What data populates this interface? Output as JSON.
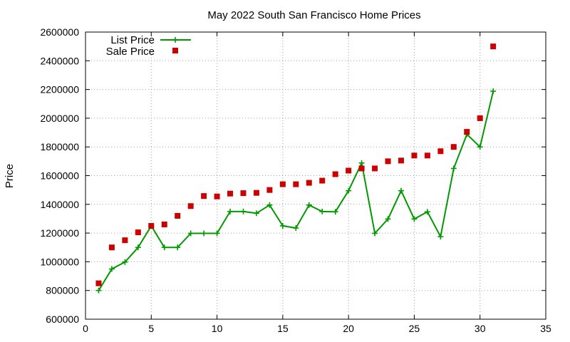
{
  "chart_data": {
    "type": "line",
    "title": "May 2022 South San Francisco Home Prices",
    "xlabel": "",
    "ylabel": "Price",
    "xlim": [
      0,
      35
    ],
    "ylim": [
      600000,
      2600000
    ],
    "xticks": [
      0,
      5,
      10,
      15,
      20,
      25,
      30,
      35
    ],
    "yticks": [
      600000,
      800000,
      1000000,
      1200000,
      1400000,
      1600000,
      1800000,
      2000000,
      2200000,
      2400000,
      2600000
    ],
    "grid": true,
    "legend_position": "top-left",
    "series": [
      {
        "name": "List Price",
        "style": "line-cross",
        "color": "#009900",
        "x": [
          1,
          2,
          3,
          4,
          5,
          6,
          7,
          8,
          9,
          10,
          11,
          12,
          13,
          14,
          15,
          16,
          17,
          18,
          19,
          20,
          21,
          22,
          23,
          24,
          25,
          26,
          27,
          28,
          29,
          30,
          31
        ],
        "values": [
          800000,
          950000,
          998000,
          1100000,
          1250000,
          1100000,
          1100000,
          1198000,
          1198000,
          1198000,
          1350000,
          1350000,
          1338000,
          1395000,
          1250000,
          1235000,
          1395000,
          1350000,
          1348000,
          1495000,
          1688000,
          1198000,
          1298000,
          1495000,
          1298000,
          1348000,
          1175000,
          1650000,
          1888000,
          1800000,
          2188000
        ]
      },
      {
        "name": "Sale Price",
        "style": "square",
        "color": "#cc0000",
        "x": [
          1,
          2,
          3,
          4,
          5,
          6,
          7,
          8,
          9,
          10,
          11,
          12,
          13,
          14,
          15,
          16,
          17,
          18,
          19,
          20,
          21,
          22,
          23,
          24,
          25,
          26,
          27,
          28,
          29,
          30,
          31
        ],
        "values": [
          850000,
          1100000,
          1150000,
          1205000,
          1250000,
          1260000,
          1320000,
          1388000,
          1458000,
          1455000,
          1475000,
          1478000,
          1480000,
          1500000,
          1540000,
          1540000,
          1550000,
          1565000,
          1610000,
          1635000,
          1650000,
          1650000,
          1700000,
          1705000,
          1740000,
          1740000,
          1770000,
          1800000,
          1905000,
          2000000,
          2500000
        ]
      }
    ]
  }
}
